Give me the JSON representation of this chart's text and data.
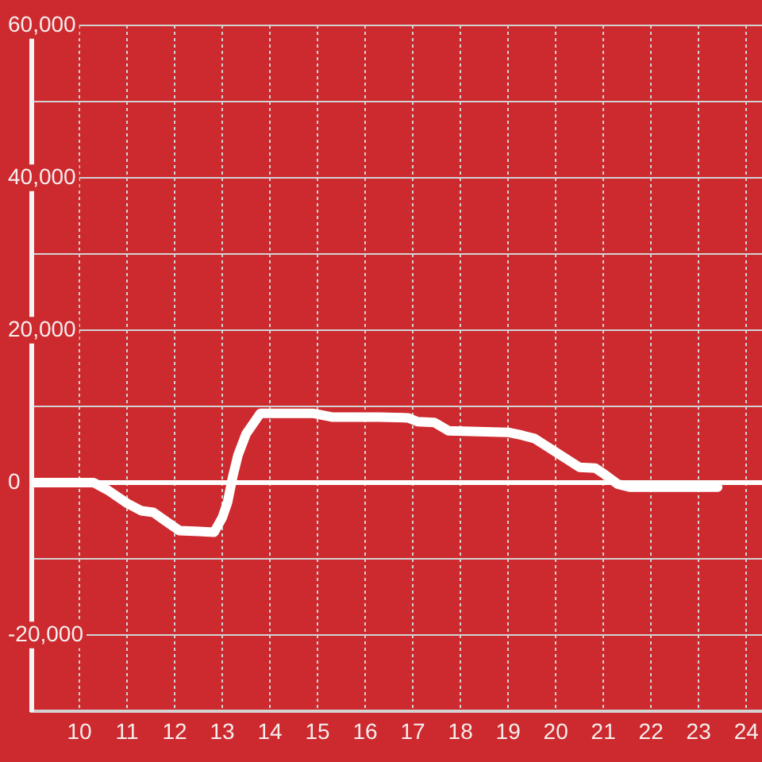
{
  "chart_data": {
    "type": "line",
    "x": [
      9,
      10.3,
      10.6,
      11.0,
      11.3,
      11.55,
      11.8,
      12.1,
      12.83,
      13.0,
      13.11,
      13.22,
      13.33,
      13.5,
      13.8,
      14.9,
      15.3,
      16.3,
      16.9,
      17.1,
      17.45,
      17.75,
      19.0,
      19.3,
      19.55,
      20.5,
      20.83,
      21.0,
      21.3,
      21.55,
      23.4
    ],
    "values": [
      0,
      0,
      -1000,
      -2700,
      -3700,
      -3900,
      -5000,
      -6300,
      -6500,
      -4600,
      -2600,
      800,
      3600,
      6400,
      9100,
      9100,
      8600,
      8600,
      8500,
      8000,
      7900,
      6800,
      6600,
      6200,
      5800,
      2000,
      1900,
      1200,
      -200,
      -600,
      -600
    ],
    "color": "#ffffff",
    "xlim": [
      9,
      24.33
    ],
    "xticks": [
      10,
      11,
      12,
      13,
      14,
      15,
      16,
      17,
      18,
      19,
      20,
      21,
      22,
      23,
      24
    ],
    "ylim": [
      -30000,
      60000
    ],
    "yticks": [
      {
        "value": -30000,
        "label": null
      },
      {
        "value": -20000,
        "label": "-20,000"
      },
      {
        "value": -10000,
        "label": null
      },
      0,
      {
        "value": 10000,
        "label": null
      },
      {
        "value": 20000,
        "label": "20,000"
      },
      {
        "value": 30000,
        "label": null
      },
      {
        "value": 40000,
        "label": "40,000"
      },
      {
        "value": 50000,
        "label": null
      },
      {
        "value": 60000,
        "label": "60,000"
      }
    ],
    "grid": true,
    "legend": false,
    "marker": "none",
    "line_style": "solid",
    "ref_lines": [
      {
        "axis": "y",
        "value": 0,
        "color": "#ffffff"
      }
    ]
  }
}
